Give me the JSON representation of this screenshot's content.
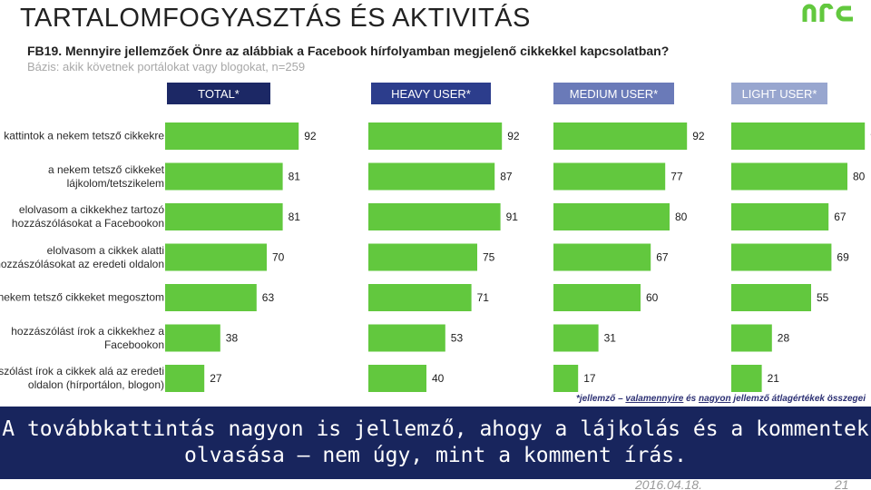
{
  "slide": {
    "title": "TARTALOMFOGYASZTÁS ÉS AKTIVITÁS",
    "question": "FB19. Mennyire jellemzőek Önre az alábbiak a Facebook hírfolyamban megjelenő cikkekkel kapcsolatban?",
    "base": "Bázis: akik követnek portálokat vagy blogokat, n=259",
    "footnote_prefix": "*jellemző – ",
    "footnote_underlined": "valamennyire",
    "footnote_middle": " és ",
    "footnote_underlined2": "nagyon",
    "footnote_suffix": " jellemző átlagértékek összegei",
    "banner_line1": "A továbbkattintás nagyon is jellemző, ahogy a lájkolás és a kommentek",
    "banner_line2": "olvasása – nem úgy, mint a komment írás.",
    "date": "2016.04.18.",
    "page": "21",
    "logo_icon": "nrc-logo-icon"
  },
  "colors": {
    "bar": "#62c83e",
    "total_head": "#1c2865",
    "heavy_head": "#2c3d8c",
    "medium_head": "#6a7ab8",
    "light_head": "#98a6cf",
    "banner": "#18255d",
    "logo": "#62c83e"
  },
  "chart_data": {
    "type": "bar",
    "orientation": "horizontal",
    "layout": "small multiples",
    "categories": [
      "kattintok a nekem tetsző cikkekre",
      "a nekem tetsző cikkeket lájkolom/tetszikelem",
      "elolvasom a cikkekhez tartozó hozzászólásokat a Facebookon",
      "elolvasom a cikkek alatti hozzászólásokat az eredeti oldalon",
      "a nekem tetsző cikkeket megosztom",
      "hozzászólást írok a cikkekhez a Facebookon",
      "hozzászólást írok a cikkek alá az eredeti oldalon (hírportálon, blogon)"
    ],
    "series": [
      {
        "name": "TOTAL*",
        "values": [
          92,
          81,
          81,
          70,
          63,
          38,
          27
        ]
      },
      {
        "name": "HEAVY USER*",
        "values": [
          92,
          87,
          91,
          75,
          71,
          53,
          40
        ]
      },
      {
        "name": "MEDIUM USER*",
        "values": [
          92,
          77,
          80,
          67,
          60,
          31,
          17
        ]
      },
      {
        "name": "LIGHT USER*",
        "values": [
          92,
          80,
          67,
          69,
          55,
          28,
          21
        ]
      }
    ]
  }
}
